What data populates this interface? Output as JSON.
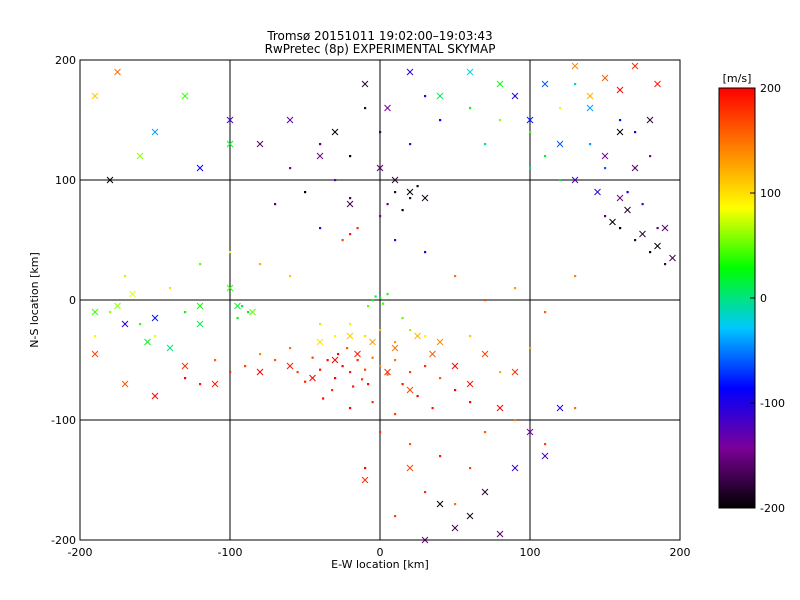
{
  "chart_data": {
    "type": "scatter",
    "title": "Tromsø 20151011 19:02:00–19:03:43",
    "subtitle": "RwPretec (8p) EXPERIMENTAL SKYMAP",
    "xlabel": "E-W location [km]",
    "ylabel": "N-S location [km]",
    "xlim": [
      -200,
      200
    ],
    "ylim": [
      -200,
      200
    ],
    "x_ticks": [
      "-200",
      "-100",
      "0",
      "100",
      "200"
    ],
    "y_ticks": [
      "-200",
      "-100",
      "0",
      "100",
      "200"
    ],
    "grid": true,
    "colorbar": {
      "label": "[m/s]",
      "range": [
        -200,
        200
      ],
      "ticks": [
        "200",
        "100",
        "0",
        "-100",
        "-200"
      ],
      "colormap": [
        "#000000",
        "#7b0098",
        "#0000ff",
        "#00c8ff",
        "#00ff00",
        "#ffff00",
        "#ff8000",
        "#ff0000"
      ]
    },
    "series": [
      {
        "marker": "dot",
        "points": [
          [
            -25,
            -55,
            200
          ],
          [
            -20,
            -60,
            190
          ],
          [
            -15,
            -50,
            180
          ],
          [
            -30,
            -65,
            200
          ],
          [
            -10,
            -58,
            170
          ],
          [
            -35,
            -50,
            195
          ],
          [
            -18,
            -72,
            185
          ],
          [
            -5,
            -48,
            150
          ],
          [
            -28,
            -45,
            200
          ],
          [
            -12,
            -66,
            175
          ],
          [
            -22,
            -40,
            160
          ],
          [
            -40,
            -58,
            190
          ],
          [
            -8,
            -70,
            200
          ],
          [
            -32,
            -75,
            180
          ],
          [
            0,
            -55,
            140
          ],
          [
            -45,
            -48,
            170
          ],
          [
            5,
            -62,
            160
          ],
          [
            10,
            -50,
            150
          ],
          [
            15,
            -70,
            190
          ],
          [
            20,
            -60,
            170
          ],
          [
            25,
            -80,
            200
          ],
          [
            30,
            -55,
            180
          ],
          [
            40,
            -65,
            160
          ],
          [
            50,
            -75,
            200
          ],
          [
            -50,
            -68,
            185
          ],
          [
            -55,
            -60,
            170
          ],
          [
            -38,
            -82,
            195
          ],
          [
            -20,
            -90,
            200
          ],
          [
            -5,
            -85,
            180
          ],
          [
            10,
            -95,
            170
          ],
          [
            35,
            -90,
            190
          ],
          [
            60,
            -85,
            200
          ],
          [
            -60,
            -40,
            150
          ],
          [
            -70,
            -50,
            160
          ],
          [
            -80,
            -45,
            140
          ],
          [
            -90,
            -55,
            170
          ],
          [
            -100,
            -60,
            180
          ],
          [
            -110,
            -50,
            160
          ],
          [
            -120,
            -70,
            190
          ],
          [
            -130,
            -65,
            200
          ],
          [
            0,
            -110,
            180
          ],
          [
            20,
            -120,
            160
          ],
          [
            40,
            -130,
            190
          ],
          [
            60,
            -140,
            170
          ],
          [
            -10,
            -140,
            200
          ],
          [
            30,
            -160,
            180
          ],
          [
            50,
            -170,
            150
          ],
          [
            10,
            -180,
            170
          ],
          [
            70,
            -110,
            160
          ],
          [
            90,
            -100,
            140
          ],
          [
            110,
            -120,
            170
          ],
          [
            130,
            -90,
            150
          ],
          [
            80,
            -60,
            120
          ],
          [
            100,
            -40,
            130
          ],
          [
            60,
            -30,
            110
          ],
          [
            30,
            -30,
            90
          ],
          [
            -5,
            0,
            30
          ],
          [
            0,
            2,
            20
          ],
          [
            2,
            -3,
            40
          ],
          [
            -3,
            3,
            10
          ],
          [
            5,
            5,
            35
          ],
          [
            -8,
            -5,
            50
          ],
          [
            -92,
            -5,
            10
          ],
          [
            -88,
            -10,
            20
          ],
          [
            -95,
            -15,
            25
          ],
          [
            -20,
            -20,
            80
          ],
          [
            -10,
            -30,
            100
          ],
          [
            0,
            -25,
            120
          ],
          [
            10,
            -35,
            130
          ],
          [
            -30,
            -30,
            90
          ],
          [
            -40,
            -20,
            70
          ],
          [
            20,
            -25,
            60
          ],
          [
            15,
            -15,
            50
          ],
          [
            -20,
            55,
            190
          ],
          [
            -15,
            60,
            180
          ],
          [
            -25,
            50,
            170
          ],
          [
            5,
            80,
            -150
          ],
          [
            10,
            90,
            -180
          ],
          [
            15,
            75,
            -200
          ],
          [
            20,
            85,
            -170
          ],
          [
            25,
            95,
            -190
          ],
          [
            -60,
            110,
            -140
          ],
          [
            -40,
            130,
            -160
          ],
          [
            -20,
            120,
            -200
          ],
          [
            0,
            140,
            -170
          ],
          [
            20,
            130,
            -120
          ],
          [
            40,
            150,
            -90
          ],
          [
            -10,
            160,
            -180
          ],
          [
            30,
            170,
            -110
          ],
          [
            -30,
            100,
            -130
          ],
          [
            -50,
            90,
            -200
          ],
          [
            -20,
            85,
            -170
          ],
          [
            0,
            70,
            -140
          ],
          [
            -40,
            60,
            -110
          ],
          [
            -70,
            80,
            -160
          ],
          [
            10,
            50,
            -120
          ],
          [
            30,
            40,
            -100
          ],
          [
            80,
            150,
            60
          ],
          [
            100,
            140,
            40
          ],
          [
            120,
            160,
            80
          ],
          [
            140,
            130,
            -40
          ],
          [
            160,
            150,
            -80
          ],
          [
            110,
            120,
            20
          ],
          [
            90,
            170,
            100
          ],
          [
            130,
            180,
            -20
          ],
          [
            150,
            110,
            -60
          ],
          [
            170,
            140,
            -100
          ],
          [
            180,
            120,
            -140
          ],
          [
            100,
            110,
            0
          ],
          [
            70,
            130,
            -10
          ],
          [
            60,
            160,
            30
          ],
          [
            120,
            100,
            10
          ],
          [
            140,
            170,
            50
          ],
          [
            160,
            60,
            -200
          ],
          [
            170,
            50,
            -180
          ],
          [
            180,
            40,
            -190
          ],
          [
            190,
            30,
            -170
          ],
          [
            150,
            70,
            -160
          ],
          [
            175,
            80,
            -120
          ],
          [
            185,
            60,
            -150
          ],
          [
            165,
            90,
            -90
          ],
          [
            -160,
            -20,
            40
          ],
          [
            -180,
            -10,
            60
          ],
          [
            -150,
            -30,
            80
          ],
          [
            -140,
            10,
            100
          ],
          [
            -170,
            20,
            70
          ],
          [
            -190,
            -30,
            90
          ],
          [
            -120,
            30,
            50
          ],
          [
            -130,
            -10,
            30
          ],
          [
            50,
            20,
            150
          ],
          [
            70,
            0,
            170
          ],
          [
            90,
            10,
            130
          ],
          [
            110,
            -10,
            160
          ],
          [
            130,
            20,
            140
          ],
          [
            -60,
            20,
            110
          ],
          [
            -80,
            30,
            120
          ],
          [
            -100,
            40,
            90
          ]
        ]
      },
      {
        "marker": "x",
        "points": [
          [
            -30,
            -50,
            200
          ],
          [
            -15,
            -45,
            190
          ],
          [
            5,
            -60,
            180
          ],
          [
            -45,
            -65,
            200
          ],
          [
            20,
            -75,
            170
          ],
          [
            35,
            -45,
            160
          ],
          [
            -60,
            -55,
            190
          ],
          [
            50,
            -55,
            200
          ],
          [
            70,
            -45,
            170
          ],
          [
            90,
            -60,
            180
          ],
          [
            -80,
            -60,
            200
          ],
          [
            -110,
            -70,
            190
          ],
          [
            -130,
            -55,
            180
          ],
          [
            -150,
            -80,
            200
          ],
          [
            -170,
            -70,
            160
          ],
          [
            -190,
            -45,
            170
          ],
          [
            10,
            -40,
            150
          ],
          [
            -5,
            -35,
            130
          ],
          [
            -20,
            -30,
            110
          ],
          [
            25,
            -30,
            120
          ],
          [
            40,
            -35,
            140
          ],
          [
            -40,
            -35,
            100
          ],
          [
            60,
            -70,
            190
          ],
          [
            80,
            -90,
            200
          ],
          [
            -10,
            -150,
            180
          ],
          [
            20,
            -140,
            170
          ],
          [
            40,
            -170,
            -200
          ],
          [
            60,
            -180,
            -190
          ],
          [
            70,
            -160,
            -180
          ],
          [
            50,
            -190,
            -170
          ],
          [
            80,
            -195,
            -160
          ],
          [
            30,
            -200,
            -150
          ],
          [
            100,
            -110,
            -140
          ],
          [
            110,
            -130,
            -120
          ],
          [
            120,
            -90,
            -100
          ],
          [
            90,
            -140,
            -110
          ],
          [
            -120,
            -5,
            30
          ],
          [
            -95,
            -5,
            20
          ],
          [
            -100,
            10,
            40
          ],
          [
            -85,
            -10,
            50
          ],
          [
            -150,
            -15,
            -80
          ],
          [
            -170,
            -20,
            -100
          ],
          [
            -190,
            -10,
            40
          ],
          [
            -175,
            -5,
            60
          ],
          [
            -165,
            5,
            80
          ],
          [
            -140,
            -40,
            0
          ],
          [
            -155,
            -35,
            20
          ],
          [
            -120,
            -20,
            10
          ],
          [
            20,
            90,
            -200
          ],
          [
            30,
            85,
            -190
          ],
          [
            10,
            100,
            -180
          ],
          [
            0,
            110,
            -160
          ],
          [
            -20,
            80,
            -170
          ],
          [
            -40,
            120,
            -150
          ],
          [
            -60,
            150,
            -130
          ],
          [
            -30,
            140,
            -200
          ],
          [
            5,
            160,
            -140
          ],
          [
            -10,
            180,
            -180
          ],
          [
            20,
            190,
            -110
          ],
          [
            -80,
            130,
            -160
          ],
          [
            -100,
            150,
            -120
          ],
          [
            -120,
            110,
            -90
          ],
          [
            -150,
            140,
            -40
          ],
          [
            -180,
            100,
            -200
          ],
          [
            100,
            150,
            -80
          ],
          [
            120,
            130,
            -60
          ],
          [
            140,
            160,
            -40
          ],
          [
            160,
            140,
            -200
          ],
          [
            180,
            150,
            -180
          ],
          [
            130,
            100,
            -120
          ],
          [
            150,
            120,
            -140
          ],
          [
            170,
            110,
            -160
          ],
          [
            155,
            65,
            -200
          ],
          [
            165,
            75,
            -190
          ],
          [
            175,
            55,
            -180
          ],
          [
            185,
            45,
            -200
          ],
          [
            195,
            35,
            -170
          ],
          [
            160,
            85,
            -150
          ],
          [
            190,
            60,
            -160
          ],
          [
            145,
            90,
            -110
          ],
          [
            90,
            170,
            -100
          ],
          [
            110,
            180,
            -60
          ],
          [
            130,
            195,
            140
          ],
          [
            150,
            185,
            160
          ],
          [
            170,
            195,
            180
          ],
          [
            160,
            175,
            200
          ],
          [
            185,
            180,
            190
          ],
          [
            140,
            170,
            120
          ],
          [
            60,
            190,
            -20
          ],
          [
            40,
            170,
            10
          ],
          [
            80,
            180,
            30
          ],
          [
            -190,
            170,
            110
          ],
          [
            -175,
            190,
            150
          ],
          [
            -160,
            120,
            60
          ],
          [
            -130,
            170,
            40
          ],
          [
            -100,
            130,
            20
          ]
        ]
      }
    ]
  }
}
